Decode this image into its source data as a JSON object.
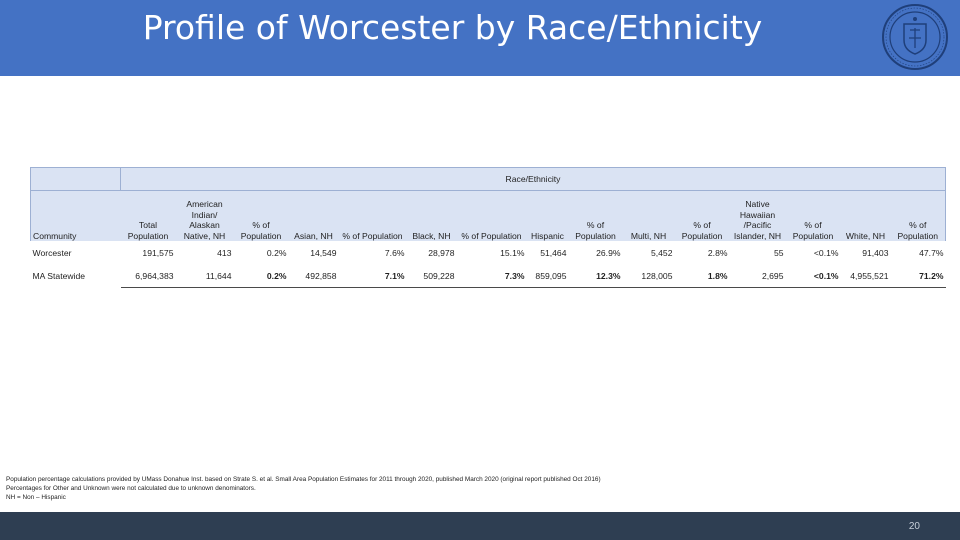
{
  "slide": {
    "title": "Profile of Worcester by Race/Ethnicity",
    "page_number": "20",
    "header_color": "#4472c4",
    "footer_color": "#2e3e52",
    "logo_icon": "seal-icon"
  },
  "table": {
    "group_header": "Race/Ethnicity",
    "columns": [
      "Community",
      "Total Population",
      "American Indian/ Alaskan Native, NH",
      "% of Population",
      "Asian, NH",
      "% of Population",
      "Black, NH",
      "% of Population",
      "Hispanic",
      "% of Population",
      "Multi, NH",
      "% of Population",
      "Native Hawaiian /Pacific Islander, NH",
      "% of Population",
      "White, NH",
      "% of Population"
    ],
    "rows": [
      [
        "Worcester",
        "191,575",
        "413",
        "0.2%",
        "14,549",
        "7.6%",
        "28,978",
        "15.1%",
        "51,464",
        "26.9%",
        "5,452",
        "2.8%",
        "55",
        "<0.1%",
        "91,403",
        "47.7%"
      ],
      [
        "MA Statewide",
        "6,964,383",
        "11,644",
        "0.2%",
        "492,858",
        "7.1%",
        "509,228",
        "7.3%",
        "859,095",
        "12.3%",
        "128,005",
        "1.8%",
        "2,695",
        "<0.1%",
        "4,955,521",
        "71.2%"
      ]
    ]
  },
  "notes": [
    "Population percentage calculations provided by UMass Donahue Inst. based on Strate S. et al. Small Area Population Estimates for 2011 through 2020, published March 2020 (original report published Oct 2016)",
    "Percentages for Other and Unknown were not calculated due to unknown denominators.",
    "NH = Non – Hispanic"
  ]
}
